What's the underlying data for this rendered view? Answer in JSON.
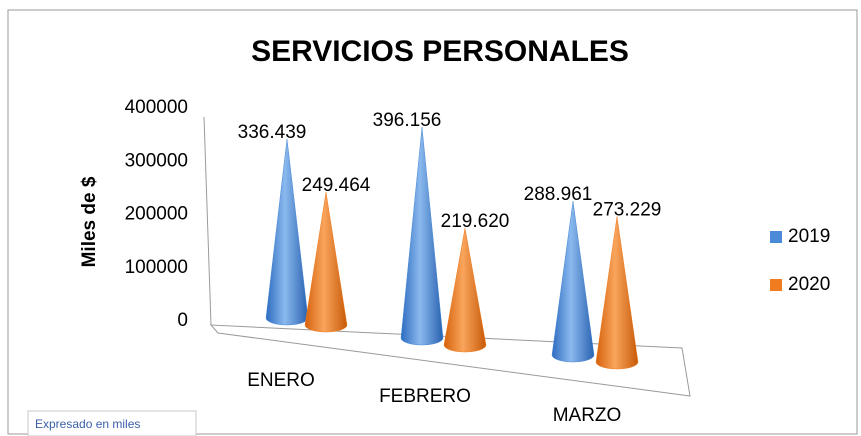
{
  "chart_data": {
    "type": "cone",
    "title": "SERVICIOS PERSONALES",
    "y_label": "Miles de $",
    "note": "Expresado en miles",
    "categories": [
      "ENERO",
      "FEBRERO",
      "MARZO"
    ],
    "series": [
      {
        "name": "2019",
        "color": "#4a8ad6",
        "values": [
          336439,
          396156,
          288961
        ],
        "value_labels": [
          "336.439",
          "396.156",
          "288.961"
        ]
      },
      {
        "name": "2020",
        "color": "#f07c1f",
        "values": [
          249464,
          219620,
          273229
        ],
        "value_labels": [
          "249.464",
          "219.620",
          "273.229"
        ]
      }
    ],
    "ylim": [
      0,
      400000
    ],
    "yticks": [
      0,
      100000,
      200000,
      300000,
      400000
    ],
    "legend": "right"
  }
}
